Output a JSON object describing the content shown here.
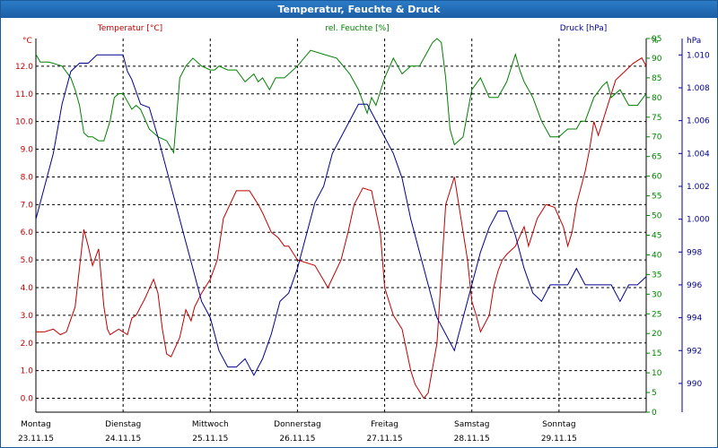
{
  "window": {
    "title": "Temperatur, Feuchte & Druck"
  },
  "colors": {
    "temperature": "#c00000",
    "humidity": "#008000",
    "pressure": "#000090",
    "grid": "#000000",
    "titlebar": "#1c5fa5"
  },
  "chart_data": {
    "type": "line",
    "title": "Temperatur, Feuchte & Druck",
    "grid": true,
    "x_axis": {
      "days": [
        {
          "day": "Montag",
          "date": "23.11.15"
        },
        {
          "day": "Dienstag",
          "date": "24.11.15"
        },
        {
          "day": "Mittwoch",
          "date": "25.11.15"
        },
        {
          "day": "Donnerstag",
          "date": "26.11.15"
        },
        {
          "day": "Freitag",
          "date": "27.11.15"
        },
        {
          "day": "Samstag",
          "date": "28.11.15"
        },
        {
          "day": "Sonntag",
          "date": "29.11.15"
        }
      ],
      "range_days": [
        0,
        7
      ]
    },
    "axes": {
      "temperature": {
        "label": "Temperatur [°C]",
        "unit": "°C",
        "range": [
          -0.5,
          13.0
        ],
        "ticks": [
          "0.0",
          "1.0",
          "2.0",
          "3.0",
          "4.0",
          "5.0",
          "6.0",
          "7.0",
          "8.0",
          "9.0",
          "10.0",
          "11.0",
          "12.0"
        ]
      },
      "humidity": {
        "label": "rel. Feuchte [%]",
        "unit": "%",
        "range": [
          0,
          95
        ],
        "ticks": [
          "0",
          "5",
          "10",
          "15",
          "20",
          "25",
          "30",
          "35",
          "40",
          "45",
          "50",
          "55",
          "60",
          "65",
          "70",
          "75",
          "80",
          "85",
          "90",
          "95"
        ]
      },
      "pressure": {
        "label": "Druck [hPa]",
        "unit": "hPa",
        "range": [
          988.25,
          1011.0
        ],
        "ticks": [
          "990",
          "992",
          "994",
          "996",
          "998",
          "1.000",
          "1.002",
          "1.004",
          "1.006",
          "1.008",
          "1.010"
        ]
      }
    },
    "series": [
      {
        "name": "Temperatur [°C]",
        "axis": "temperature",
        "x": [
          0,
          0.1,
          0.2,
          0.28,
          0.35,
          0.45,
          0.55,
          0.6,
          0.65,
          0.72,
          0.78,
          0.82,
          0.85,
          0.9,
          0.95,
          1.0,
          1.05,
          1.1,
          1.15,
          1.25,
          1.35,
          1.4,
          1.45,
          1.5,
          1.55,
          1.65,
          1.72,
          1.78,
          1.82,
          1.9,
          2.0,
          2.08,
          2.15,
          2.3,
          2.45,
          2.55,
          2.6,
          2.7,
          2.78,
          2.85,
          2.9,
          3.0,
          3.2,
          3.35,
          3.5,
          3.58,
          3.65,
          3.75,
          3.85,
          3.95,
          4.0,
          4.1,
          4.2,
          4.3,
          4.35,
          4.45,
          4.5,
          4.6,
          4.7,
          4.8,
          4.95,
          5.0,
          5.05,
          5.1,
          5.2,
          5.25,
          5.3,
          5.35,
          5.4,
          5.5,
          5.6,
          5.65,
          5.75,
          5.85,
          5.95,
          6.05,
          6.1,
          6.15,
          6.2,
          6.3,
          6.35,
          6.4,
          6.45,
          6.55,
          6.65,
          6.75,
          6.85,
          6.95,
          7.0
        ],
        "y": [
          2.4,
          2.4,
          2.5,
          2.3,
          2.4,
          3.3,
          6.1,
          5.5,
          4.8,
          5.4,
          3.3,
          2.5,
          2.3,
          2.4,
          2.5,
          2.4,
          2.3,
          2.9,
          3.0,
          3.6,
          4.3,
          3.8,
          2.5,
          1.6,
          1.5,
          2.2,
          3.2,
          2.8,
          3.3,
          3.8,
          4.3,
          5.0,
          6.5,
          7.5,
          7.5,
          7.0,
          6.7,
          6.0,
          5.8,
          5.5,
          5.5,
          5.0,
          4.8,
          4.0,
          5.0,
          6.0,
          7.0,
          7.6,
          7.5,
          6.0,
          4.0,
          3.0,
          2.5,
          1.0,
          0.5,
          0.0,
          0.2,
          2.0,
          7.0,
          8.0,
          5.0,
          3.5,
          3.0,
          2.4,
          3.0,
          4.0,
          4.6,
          5.0,
          5.2,
          5.5,
          6.2,
          5.5,
          6.5,
          7.0,
          6.9,
          6.2,
          5.5,
          6.0,
          7.0,
          8.2,
          9.0,
          10.0,
          9.5,
          10.5,
          11.5,
          11.8,
          12.1,
          12.3,
          12.0
        ]
      },
      {
        "name": "rel. Feuchte [%]",
        "axis": "humidity",
        "x": [
          0,
          0.05,
          0.15,
          0.3,
          0.4,
          0.45,
          0.5,
          0.55,
          0.6,
          0.65,
          0.72,
          0.78,
          0.85,
          0.9,
          0.95,
          1.0,
          1.05,
          1.1,
          1.15,
          1.2,
          1.3,
          1.4,
          1.5,
          1.58,
          1.65,
          1.72,
          1.8,
          1.9,
          2.0,
          2.05,
          2.1,
          2.2,
          2.3,
          2.4,
          2.5,
          2.55,
          2.6,
          2.68,
          2.75,
          2.85,
          3.0,
          3.15,
          3.3,
          3.45,
          3.6,
          3.7,
          3.8,
          3.85,
          3.9,
          4.0,
          4.1,
          4.2,
          4.3,
          4.4,
          4.5,
          4.55,
          4.6,
          4.65,
          4.7,
          4.75,
          4.8,
          4.9,
          5.0,
          5.1,
          5.2,
          5.3,
          5.4,
          5.5,
          5.55,
          5.6,
          5.7,
          5.8,
          5.9,
          6.0,
          6.05,
          6.1,
          6.2,
          6.25,
          6.3,
          6.4,
          6.5,
          6.55,
          6.6,
          6.7,
          6.8,
          6.9,
          7.0
        ],
        "y": [
          91,
          89,
          89,
          88,
          85,
          82,
          78,
          71,
          70,
          70,
          69,
          69,
          74,
          80,
          81,
          81,
          79,
          77,
          78,
          77,
          72,
          70,
          69,
          66,
          85,
          88,
          90,
          88,
          87,
          87,
          88,
          87,
          87,
          84,
          86,
          84,
          85,
          82,
          85,
          85,
          88,
          92,
          91,
          90,
          86,
          82,
          76,
          80,
          78,
          85,
          90,
          86,
          88,
          88,
          92,
          94,
          95,
          94,
          85,
          72,
          68,
          70,
          82,
          85,
          80,
          80,
          84,
          91,
          87,
          84,
          80,
          74,
          70,
          70,
          71,
          72,
          72,
          74,
          74,
          80,
          83,
          84,
          80,
          82,
          78,
          78,
          81
        ]
      },
      {
        "name": "Druck [hPa]",
        "axis": "pressure",
        "x": [
          0,
          0.1,
          0.2,
          0.3,
          0.4,
          0.5,
          0.6,
          0.7,
          0.8,
          0.9,
          1.0,
          1.05,
          1.1,
          1.2,
          1.3,
          1.4,
          1.5,
          1.6,
          1.7,
          1.8,
          1.9,
          2.0,
          2.1,
          2.2,
          2.3,
          2.4,
          2.5,
          2.6,
          2.7,
          2.8,
          2.9,
          3.0,
          3.1,
          3.2,
          3.3,
          3.4,
          3.5,
          3.6,
          3.7,
          3.8,
          3.9,
          4.0,
          4.1,
          4.2,
          4.3,
          4.4,
          4.5,
          4.6,
          4.7,
          4.8,
          4.9,
          5.0,
          5.1,
          5.2,
          5.3,
          5.4,
          5.5,
          5.6,
          5.7,
          5.8,
          5.9,
          6.0,
          6.1,
          6.2,
          6.3,
          6.4,
          6.5,
          6.6,
          6.7,
          6.8,
          6.9,
          7.0
        ],
        "y": [
          1000,
          1002,
          1004,
          1007,
          1009,
          1009.5,
          1009.5,
          1010,
          1010,
          1010,
          1010,
          1009,
          1008.5,
          1007,
          1006.8,
          1005,
          1003,
          1001,
          999,
          997,
          995,
          994,
          992,
          991,
          991,
          991.5,
          990.5,
          991.5,
          993,
          995,
          995.5,
          997,
          999,
          1001,
          1002,
          1004,
          1005,
          1006,
          1007,
          1007,
          1006,
          1005,
          1004,
          1002.5,
          1000,
          998,
          996,
          994,
          993,
          992,
          994,
          996,
          998,
          999.5,
          1000.5,
          1000.5,
          999,
          997,
          995.5,
          995,
          996,
          996,
          996,
          997,
          996,
          996,
          996,
          996,
          995,
          996,
          996,
          996.5
        ]
      }
    ]
  }
}
